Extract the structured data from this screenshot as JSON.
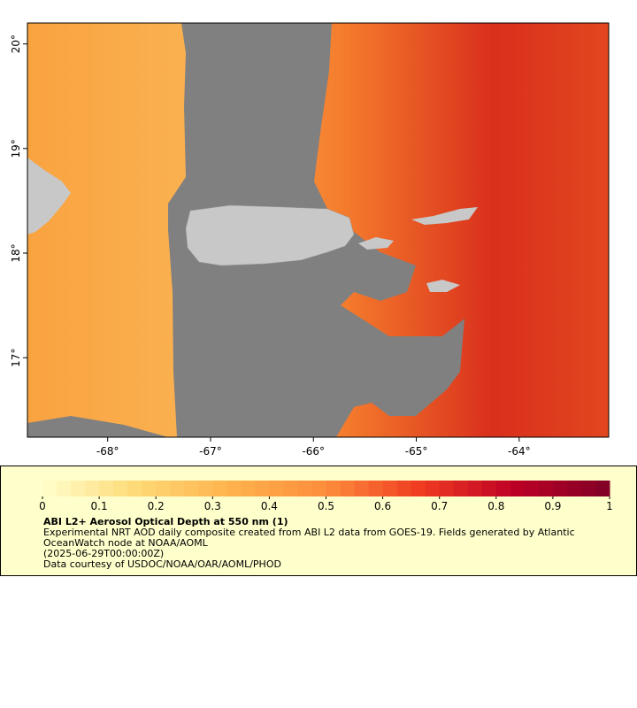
{
  "map": {
    "xlim": [
      -68.78,
      -63.13
    ],
    "ylim": [
      16.24,
      20.2
    ],
    "xticks": [
      {
        "value": -68,
        "label": "-68°"
      },
      {
        "value": -67,
        "label": "-67°"
      },
      {
        "value": -66,
        "label": "-66°"
      },
      {
        "value": -65,
        "label": "-65°"
      },
      {
        "value": -64,
        "label": "-64°"
      }
    ],
    "yticks": [
      {
        "value": 17,
        "label": "17°"
      },
      {
        "value": 18,
        "label": "18°"
      },
      {
        "value": 19,
        "label": "19°"
      },
      {
        "value": 20,
        "label": "20°"
      }
    ]
  },
  "colorbar": {
    "range": [
      0,
      1
    ],
    "ticks": [
      0,
      0.1,
      0.2,
      0.3,
      0.4,
      0.5,
      0.6,
      0.7,
      0.8,
      0.9,
      1
    ],
    "colors": [
      "#ffffcc",
      "#fed976",
      "#feb24c",
      "#fd8d3c",
      "#f03b20",
      "#bd0026",
      "#800026"
    ],
    "steps": 40
  },
  "caption": {
    "title": "ABI L2+ Aerosol Optical Depth at 550 nm (1)",
    "lines": [
      "Experimental NRT AOD daily composite created from ABI L2 data from GOES-19. Fields generated by Atlantic",
      "OceanWatch node at NOAA/AOML",
      "(2025-06-29T00:00:00Z)",
      "Data courtesy of USDOC/NOAA/OAR/AOML/PHOD"
    ]
  }
}
